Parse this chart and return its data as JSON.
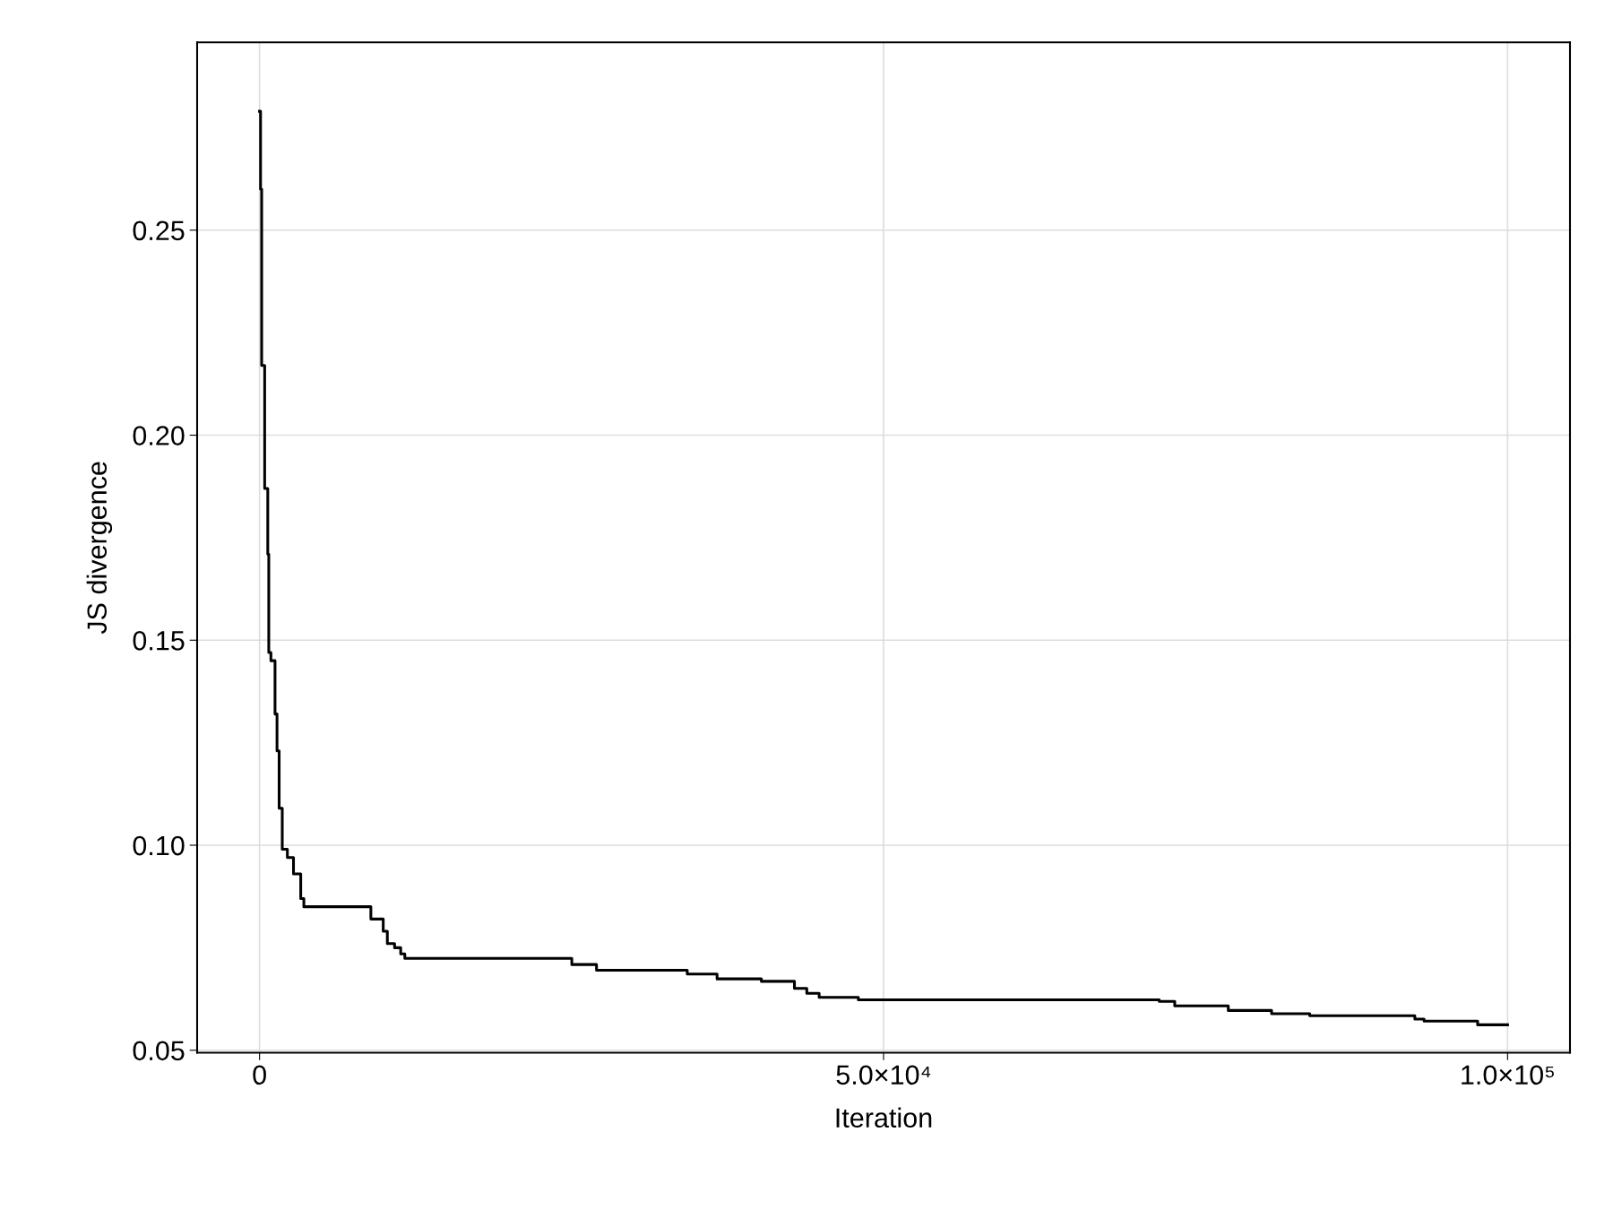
{
  "chart_data": {
    "type": "step",
    "xlabel": "Iteration",
    "ylabel": "JS divergence",
    "x": [
      0,
      80,
      170,
      410,
      660,
      740,
      910,
      1240,
      1400,
      1570,
      1820,
      2230,
      2720,
      3300,
      3550,
      4050,
      8920,
      9910,
      10240,
      10820,
      11310,
      11640,
      25020,
      27000,
      34270,
      36660,
      40210,
      42860,
      43850,
      44840,
      47980,
      72090,
      73330,
      77620,
      81090,
      84150,
      92570,
      93310,
      97600,
      100000
    ],
    "series": [
      {
        "color": "#000000",
        "values": [
          0.279,
          0.26,
          0.217,
          0.187,
          0.171,
          0.147,
          0.145,
          0.132,
          0.123,
          0.109,
          0.099,
          0.097,
          0.093,
          0.087,
          0.085,
          0.085,
          0.082,
          0.079,
          0.076,
          0.075,
          0.0735,
          0.0724,
          0.0709,
          0.0695,
          0.0686,
          0.0674,
          0.0668,
          0.0651,
          0.0639,
          0.0629,
          0.0623,
          0.0619,
          0.0608,
          0.0597,
          0.0589,
          0.0584,
          0.0576,
          0.0571,
          0.0562,
          0.0562
        ]
      }
    ],
    "xlim": [
      -5000,
      105000
    ],
    "ylim": [
      0.0494,
      0.2958
    ],
    "xticks": [
      0,
      {
        "value": 50000,
        "label": "5.0×10⁴"
      },
      {
        "value": 100000,
        "label": "1.0×10⁵"
      }
    ],
    "yticks": [
      {
        "value": 0.05,
        "label": "0.05"
      },
      {
        "value": 0.1,
        "label": "0.10"
      },
      {
        "value": 0.15,
        "label": "0.15"
      },
      {
        "value": 0.2,
        "label": "0.20"
      },
      {
        "value": 0.25,
        "label": "0.25"
      }
    ],
    "grid": true,
    "legend": false,
    "line_style": "solid"
  }
}
